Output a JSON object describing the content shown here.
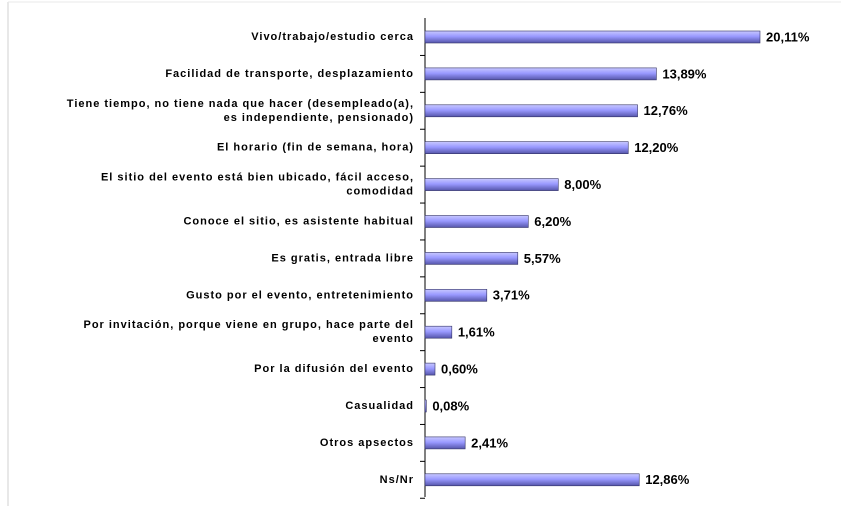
{
  "chart_data": {
    "type": "bar",
    "orientation": "horizontal",
    "categories": [
      "Vivo/trabajo/estudio cerca",
      "Facilidad de transporte, desplazamiento",
      "Tiene tiempo, no tiene nada que hacer (desempleado(a),\nes independiente, pensionado)",
      "El horario (fin de semana, hora)",
      "El sitio del evento está bien ubicado, fácil acceso,\ncomodidad",
      "Conoce el sitio, es asistente habitual",
      "Es gratis, entrada libre",
      "Gusto por el evento, entretenimiento",
      "Por invitación, porque viene en grupo, hace parte del\nevento",
      "Por la difusión del evento",
      "Casualidad",
      "Otros apsectos",
      "Ns/Nr"
    ],
    "values": [
      20.11,
      13.89,
      12.76,
      12.2,
      8.0,
      6.2,
      5.57,
      3.71,
      1.61,
      0.6,
      0.08,
      2.41,
      12.86
    ],
    "value_labels": [
      "20,11%",
      "13,89%",
      "12,76%",
      "12,20%",
      "8,00%",
      "6,20%",
      "5,57%",
      "3,71%",
      "1,61%",
      "0,60%",
      "0,08%",
      "2,41%",
      "12,86%"
    ],
    "color": "#9999ff"
  }
}
